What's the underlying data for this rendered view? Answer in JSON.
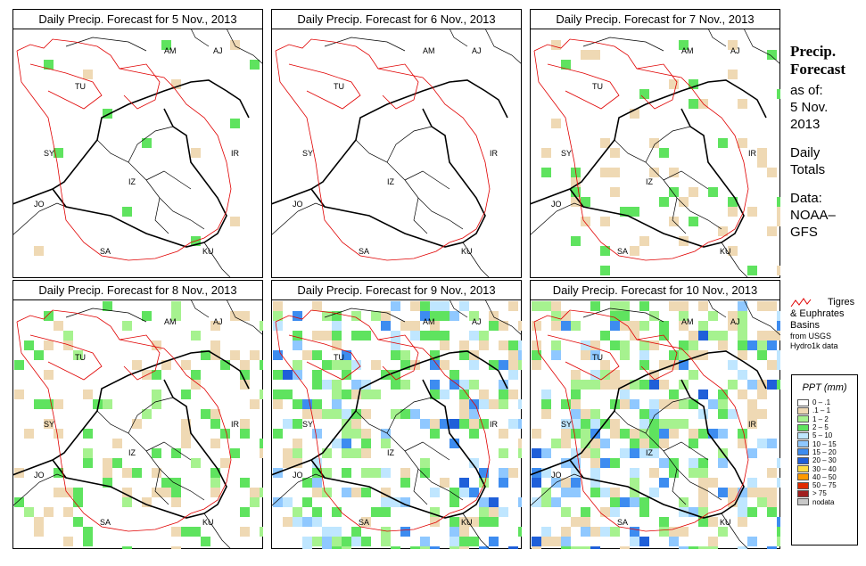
{
  "panels": [
    {
      "title": "Daily Precip. Forecast for  5 Nov., 2013",
      "intensity": 0.05
    },
    {
      "title": "Daily Precip. Forecast for  6 Nov., 2013",
      "intensity": 0.0
    },
    {
      "title": "Daily Precip. Forecast for  7 Nov., 2013",
      "intensity": 0.18
    },
    {
      "title": "Daily Precip. Forecast for  8 Nov., 2013",
      "intensity": 0.35
    },
    {
      "title": "Daily Precip. Forecast for  9 Nov., 2013",
      "intensity": 0.75
    },
    {
      "title": "Daily Precip. Forecast for  10 Nov., 2013",
      "intensity": 0.85
    }
  ],
  "labels": [
    "AM",
    "AJ",
    "TU",
    "SY",
    "IR",
    "IZ",
    "JO",
    "SA",
    "KU"
  ],
  "side": {
    "title1": "Precip.",
    "title2": "Forecast",
    "asof": "as of:",
    "date1": "5 Nov.",
    "date2": "2013",
    "daily1": "Daily",
    "daily2": "Totals",
    "data1": "Data:",
    "data2": "NOAA–",
    "data3": "GFS"
  },
  "basins": {
    "line1": "Tigres",
    "line2": "& Euphrates",
    "line3": "Basins",
    "src1": "from USGS",
    "src2": "Hydro1k data",
    "color": "#e00000"
  },
  "legend": {
    "title": "PPT (mm)",
    "items": [
      {
        "range": "0 – .1",
        "color": "#ffffff"
      },
      {
        "range": ".1 – 1",
        "color": "#efd9b4"
      },
      {
        "range": "1 – 2",
        "color": "#a6f28f"
      },
      {
        "range": "2 – 5",
        "color": "#5fe35f"
      },
      {
        "range": "5 – 10",
        "color": "#bfe6ff"
      },
      {
        "range": "10 – 15",
        "color": "#8fc8ff"
      },
      {
        "range": "15 – 20",
        "color": "#3d8cf0"
      },
      {
        "range": "20 – 30",
        "color": "#1f5fd9"
      },
      {
        "range": "30 – 40",
        "color": "#ffdd44"
      },
      {
        "range": "40 – 50",
        "color": "#ff9900"
      },
      {
        "range": "50 – 75",
        "color": "#e02a00"
      },
      {
        "range": "> 75",
        "color": "#a02020"
      },
      {
        "range": "nodata",
        "color": "#c8c8c8"
      }
    ]
  }
}
